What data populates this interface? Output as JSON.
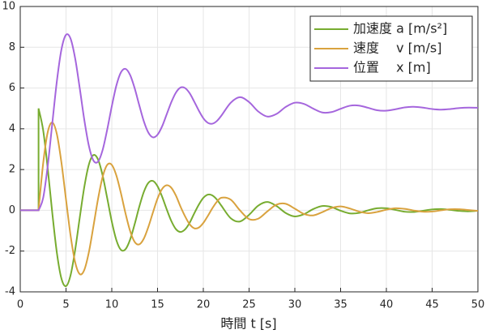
{
  "chart_data": {
    "type": "line",
    "xlabel": "時間 t [s]",
    "x": [
      0,
      2,
      2,
      2.5,
      3,
      3.5,
      4,
      4.5,
      5,
      5.5,
      6,
      6.5,
      7,
      7.5,
      8,
      8.5,
      9,
      9.5,
      10,
      10.5,
      11,
      11.5,
      12,
      12.5,
      13,
      13.5,
      14,
      14.5,
      15,
      15.5,
      16,
      16.5,
      17,
      17.5,
      18,
      18.5,
      19,
      19.5,
      20,
      20.5,
      21,
      21.5,
      22,
      23,
      24,
      25,
      26,
      27,
      28,
      29,
      30,
      31,
      32,
      33,
      34,
      35,
      36,
      37,
      38,
      39,
      40,
      41,
      42,
      43,
      44,
      45,
      46,
      47,
      48,
      49,
      50
    ],
    "series": [
      {
        "name": "加速度 a [m/s²]",
        "color": "#77ac30",
        "values": [
          0,
          0,
          5,
          3.94,
          2.06,
          -0.13,
          -2.08,
          -3.35,
          -3.72,
          -3.18,
          -1.94,
          -0.36,
          1.15,
          2.25,
          2.71,
          2.49,
          1.71,
          0.6,
          -0.55,
          -1.46,
          -1.94,
          -1.91,
          -1.44,
          -0.68,
          0.17,
          0.9,
          1.35,
          1.44,
          1.18,
          0.67,
          0.05,
          -0.52,
          -0.92,
          -1.06,
          -0.94,
          -0.62,
          -0.16,
          0.27,
          0.61,
          0.77,
          0.73,
          0.52,
          0.21,
          -0.39,
          -0.55,
          -0.22,
          0.23,
          0.41,
          0.21,
          -0.13,
          -0.3,
          -0.19,
          0.06,
          0.21,
          0.16,
          -0.02,
          -0.15,
          -0.13,
          0,
          0.1,
          0.1,
          0.02,
          -0.07,
          -0.08,
          -0.02,
          0.04,
          0.06,
          0.02,
          -0.03,
          -0.05,
          -0.02
        ]
      },
      {
        "name": "速度　 v [m/s]",
        "color": "#d9a23e",
        "values": [
          0,
          0,
          0,
          2.29,
          3.83,
          4.31,
          3.74,
          2.34,
          0.53,
          -1.24,
          -2.55,
          -3.13,
          -2.92,
          -2.05,
          -0.77,
          0.56,
          1.64,
          2.23,
          2.23,
          1.71,
          0.84,
          -0.15,
          -1.01,
          -1.55,
          -1.67,
          -1.39,
          -0.81,
          -0.1,
          0.58,
          1.05,
          1.23,
          1.11,
          0.73,
          0.19,
          -0.29,
          -0.68,
          -0.88,
          -0.85,
          -0.62,
          -0.27,
          0.11,
          0.43,
          0.62,
          0.52,
          0,
          -0.43,
          -0.41,
          -0.05,
          0.28,
          0.32,
          0.08,
          -0.18,
          -0.25,
          -0.09,
          0.11,
          0.19,
          0.09,
          -0.06,
          -0.14,
          -0.08,
          0.03,
          0.1,
          0.07,
          -0.01,
          -0.07,
          -0.06,
          0,
          0.05,
          0.05,
          0.01,
          -0.03
        ]
      },
      {
        "name": "位置　 x [m]",
        "color": "#a566dd",
        "values": [
          0,
          0,
          0,
          0.6,
          2.17,
          4.26,
          6.33,
          7.89,
          8.61,
          8.42,
          7.45,
          5.99,
          4.43,
          3.16,
          2.44,
          2.39,
          2.96,
          3.96,
          5.1,
          6.12,
          6.77,
          6.94,
          6.64,
          5.99,
          5.16,
          4.37,
          3.81,
          3.58,
          3.71,
          4.12,
          4.71,
          5.3,
          5.77,
          6.02,
          6,
          5.75,
          5.34,
          4.9,
          4.52,
          4.29,
          4.25,
          4.39,
          4.66,
          5.28,
          5.55,
          5.31,
          4.85,
          4.6,
          4.73,
          5.07,
          5.28,
          5.22,
          4.99,
          4.8,
          4.82,
          4.98,
          5.13,
          5.14,
          5.03,
          4.91,
          4.89,
          4.96,
          5.05,
          5.08,
          5.04,
          4.97,
          4.94,
          4.97,
          5.02,
          5.04,
          5.03
        ]
      }
    ],
    "xlim": [
      0,
      50
    ],
    "xticks": [
      0,
      5,
      10,
      15,
      20,
      25,
      30,
      35,
      40,
      45,
      50
    ],
    "ylim": [
      -4,
      10
    ],
    "yticks": [
      -4,
      -2,
      0,
      2,
      4,
      6,
      8,
      10
    ],
    "grid": true,
    "legend": "upper right"
  }
}
